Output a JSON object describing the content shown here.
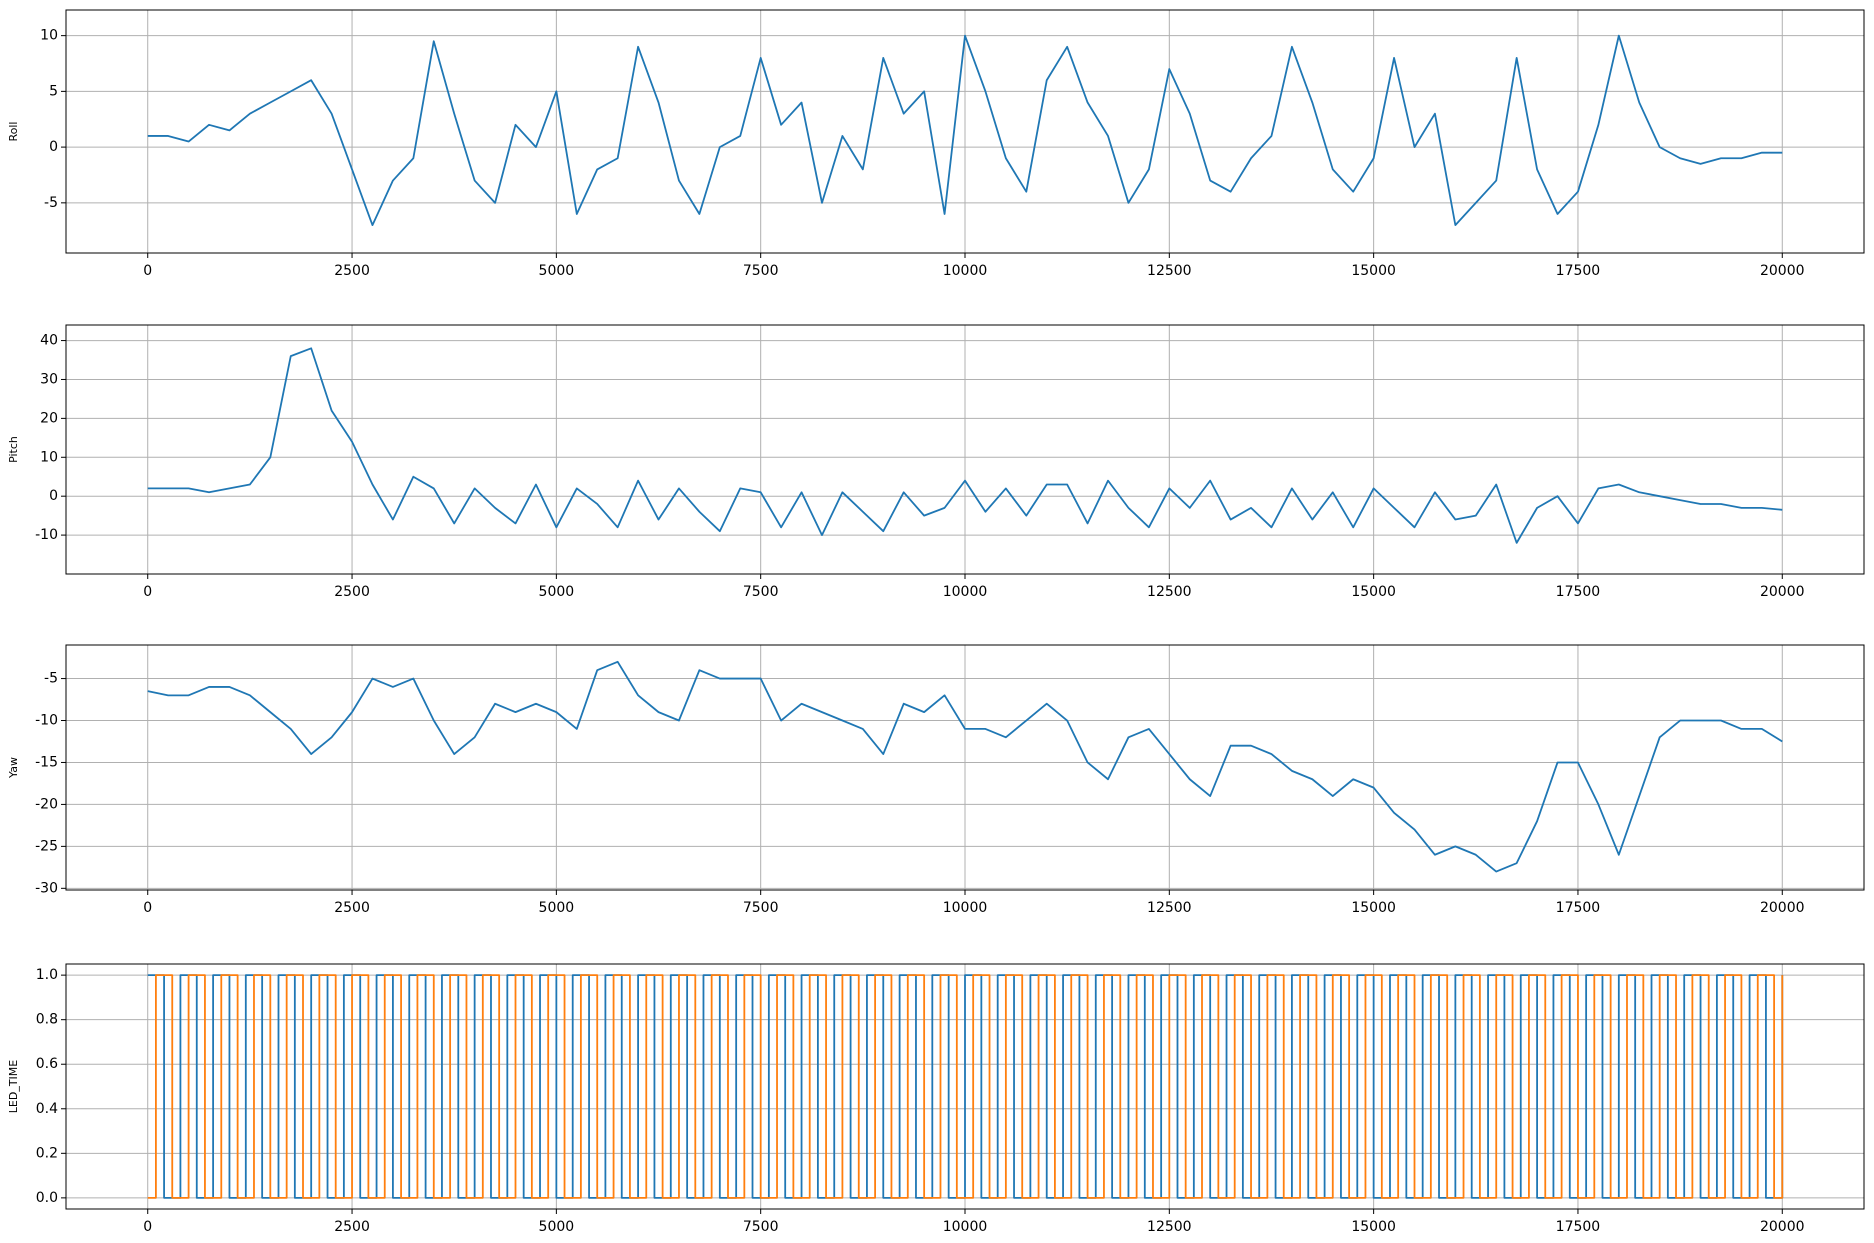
{
  "chart_data": [
    {
      "type": "line",
      "ylabel": "Roll",
      "xlim": [
        -1000,
        21000
      ],
      "xticks": [
        0,
        2500,
        5000,
        7500,
        10000,
        12500,
        15000,
        17500,
        20000
      ],
      "ylim": [
        -9.5,
        12.3
      ],
      "yticks": [
        -5,
        0,
        5,
        10
      ],
      "grid": true,
      "x": [
        0,
        250,
        500,
        750,
        1000,
        1250,
        1500,
        1750,
        2000,
        2250,
        2500,
        2750,
        3000,
        3250,
        3500,
        3750,
        4000,
        4250,
        4500,
        4750,
        5000,
        5250,
        5500,
        5750,
        6000,
        6250,
        6500,
        6750,
        7000,
        7250,
        7500,
        7750,
        8000,
        8250,
        8500,
        8750,
        9000,
        9250,
        9500,
        9750,
        10000,
        10250,
        10500,
        10750,
        11000,
        11250,
        11500,
        11750,
        12000,
        12250,
        12500,
        12750,
        13000,
        13250,
        13500,
        13750,
        14000,
        14250,
        14500,
        14750,
        15000,
        15250,
        15500,
        15750,
        16000,
        16250,
        16500,
        16750,
        17000,
        17250,
        17500,
        17750,
        18000,
        18250,
        18500,
        18750,
        19000,
        19250,
        19500,
        19750,
        20000
      ],
      "series": [
        {
          "color": "#1f77b4",
          "values": [
            1,
            1,
            0.5,
            2,
            1.5,
            3,
            4,
            5,
            6,
            3,
            -2,
            -7,
            -3,
            -1,
            9.5,
            3,
            -3,
            -5,
            2,
            0,
            5,
            -6,
            -2,
            -1,
            9,
            4,
            -3,
            -6,
            0,
            1,
            8,
            2,
            4,
            -5,
            1,
            -2,
            8,
            3,
            5,
            -6,
            10,
            5,
            -1,
            -4,
            6,
            9,
            4,
            1,
            -5,
            -2,
            7,
            3,
            -3,
            -4,
            -1,
            1,
            9,
            4,
            -2,
            -4,
            -1,
            8,
            0,
            3,
            -7,
            -5,
            -3,
            8,
            -2,
            -6,
            -4,
            2,
            10,
            4,
            0,
            -1,
            -1.5,
            -1,
            -1,
            -0.5,
            -0.5
          ]
        }
      ]
    },
    {
      "type": "line",
      "ylabel": "Pitch",
      "xlim": [
        -1000,
        21000
      ],
      "xticks": [
        0,
        2500,
        5000,
        7500,
        10000,
        12500,
        15000,
        17500,
        20000
      ],
      "ylim": [
        -20,
        44
      ],
      "yticks": [
        -10,
        0,
        10,
        20,
        30,
        40
      ],
      "grid": true,
      "x": [
        0,
        250,
        500,
        750,
        1000,
        1250,
        1500,
        1750,
        2000,
        2250,
        2500,
        2750,
        3000,
        3250,
        3500,
        3750,
        4000,
        4250,
        4500,
        4750,
        5000,
        5250,
        5500,
        5750,
        6000,
        6250,
        6500,
        6750,
        7000,
        7250,
        7500,
        7750,
        8000,
        8250,
        8500,
        8750,
        9000,
        9250,
        9500,
        9750,
        10000,
        10250,
        10500,
        10750,
        11000,
        11250,
        11500,
        11750,
        12000,
        12250,
        12500,
        12750,
        13000,
        13250,
        13500,
        13750,
        14000,
        14250,
        14500,
        14750,
        15000,
        15250,
        15500,
        15750,
        16000,
        16250,
        16500,
        16750,
        17000,
        17250,
        17500,
        17750,
        18000,
        18250,
        18500,
        18750,
        19000,
        19250,
        19500,
        19750,
        20000
      ],
      "series": [
        {
          "color": "#1f77b4",
          "values": [
            2,
            2,
            2,
            1,
            2,
            3,
            10,
            36,
            38,
            22,
            14,
            3,
            -6,
            5,
            2,
            -7,
            2,
            -3,
            -7,
            3,
            -8,
            2,
            -2,
            -8,
            4,
            -6,
            2,
            -4,
            -9,
            2,
            1,
            -8,
            1,
            -10,
            1,
            -4,
            -9,
            1,
            -5,
            -3,
            4,
            -4,
            2,
            -5,
            3,
            3,
            -7,
            4,
            -3,
            -8,
            2,
            -3,
            4,
            -6,
            -3,
            -8,
            2,
            -6,
            1,
            -8,
            2,
            -3,
            -8,
            1,
            -6,
            -5,
            3,
            -12,
            -3,
            0,
            -7,
            2,
            3,
            1,
            0,
            -1,
            -2,
            -2,
            -3,
            -3,
            -3.5
          ]
        }
      ]
    },
    {
      "type": "line",
      "ylabel": "Yaw",
      "xlim": [
        -1000,
        21000
      ],
      "xticks": [
        0,
        2500,
        5000,
        7500,
        10000,
        12500,
        15000,
        17500,
        20000
      ],
      "ylim": [
        -30.2,
        -1
      ],
      "yticks": [
        -30,
        -25,
        -20,
        -15,
        -10,
        -5
      ],
      "grid": true,
      "x": [
        0,
        250,
        500,
        750,
        1000,
        1250,
        1500,
        1750,
        2000,
        2250,
        2500,
        2750,
        3000,
        3250,
        3500,
        3750,
        4000,
        4250,
        4500,
        4750,
        5000,
        5250,
        5500,
        5750,
        6000,
        6250,
        6500,
        6750,
        7000,
        7250,
        7500,
        7750,
        8000,
        8250,
        8500,
        8750,
        9000,
        9250,
        9500,
        9750,
        10000,
        10250,
        10500,
        10750,
        11000,
        11250,
        11500,
        11750,
        12000,
        12250,
        12500,
        12750,
        13000,
        13250,
        13500,
        13750,
        14000,
        14250,
        14500,
        14750,
        15000,
        15250,
        15500,
        15750,
        16000,
        16250,
        16500,
        16750,
        17000,
        17250,
        17500,
        17750,
        18000,
        18250,
        18500,
        18750,
        19000,
        19250,
        19500,
        19750,
        20000
      ],
      "series": [
        {
          "color": "#1f77b4",
          "values": [
            -6.5,
            -7,
            -7,
            -6,
            -6,
            -7,
            -9,
            -11,
            -14,
            -12,
            -9,
            -5,
            -6,
            -5,
            -10,
            -14,
            -12,
            -8,
            -9,
            -8,
            -9,
            -11,
            -4,
            -3,
            -7,
            -9,
            -10,
            -4,
            -5,
            -5,
            -5,
            -10,
            -8,
            -9,
            -10,
            -11,
            -14,
            -8,
            -9,
            -7,
            -11,
            -11,
            -12,
            -10,
            -8,
            -10,
            -15,
            -17,
            -12,
            -11,
            -14,
            -17,
            -19,
            -13,
            -13,
            -14,
            -16,
            -17,
            -19,
            -17,
            -18,
            -21,
            -23,
            -26,
            -25,
            -26,
            -28,
            -27,
            -22,
            -15,
            -15,
            -20,
            -26,
            -19,
            -12,
            -10,
            -10,
            -10,
            -11,
            -11,
            -12.5
          ]
        }
      ]
    },
    {
      "type": "step",
      "ylabel": "LED_TIME",
      "xlim": [
        -1000,
        21000
      ],
      "xticks": [
        0,
        2500,
        5000,
        7500,
        10000,
        12500,
        15000,
        17500,
        20000
      ],
      "ylim": [
        -0.05,
        1.05
      ],
      "yticks": [
        {
          "value": 0,
          "label": "0.0"
        },
        {
          "value": 0.2,
          "label": "0.2"
        },
        {
          "value": 0.4,
          "label": "0.4"
        },
        {
          "value": 0.6,
          "label": "0.6"
        },
        {
          "value": 0.8,
          "label": "0.8"
        },
        {
          "value": 1,
          "label": "1.0"
        }
      ],
      "grid": true,
      "series": [
        {
          "color": "#1f77b4",
          "x": [
            0,
            200,
            400,
            600,
            800,
            1000,
            1200,
            1400,
            1600,
            1800,
            2000,
            2200,
            2400,
            2600,
            2800,
            3000,
            3200,
            3400,
            3600,
            3800,
            4000,
            4200,
            4400,
            4600,
            4800,
            5000,
            5200,
            5400,
            5600,
            5800,
            6000,
            6200,
            6400,
            6600,
            6800,
            7000,
            7200,
            7400,
            7600,
            7800,
            8000,
            8200,
            8400,
            8600,
            8800,
            9000,
            9200,
            9400,
            9600,
            9800,
            10000,
            10200,
            10400,
            10600,
            10800,
            11000,
            11200,
            11400,
            11600,
            11800,
            12000,
            12200,
            12400,
            12600,
            12800,
            13000,
            13200,
            13400,
            13600,
            13800,
            14000,
            14200,
            14400,
            14600,
            14800,
            15000,
            15200,
            15400,
            15600,
            15800,
            16000,
            16200,
            16400,
            16600,
            16800,
            17000,
            17200,
            17400,
            17600,
            17800,
            18000,
            18200,
            18400,
            18600,
            18800,
            19000,
            19200,
            19400,
            19600,
            19800,
            20000
          ],
          "values": [
            1,
            0,
            1,
            0,
            1,
            0,
            1,
            0,
            1,
            0,
            1,
            0,
            1,
            0,
            1,
            0,
            1,
            0,
            1,
            0,
            1,
            0,
            1,
            0,
            1,
            0,
            1,
            0,
            1,
            0,
            1,
            0,
            1,
            0,
            1,
            0,
            1,
            0,
            1,
            0,
            1,
            0,
            1,
            0,
            1,
            0,
            1,
            0,
            1,
            0,
            1,
            0,
            1,
            0,
            1,
            0,
            1,
            0,
            1,
            0,
            1,
            0,
            1,
            0,
            1,
            0,
            1,
            0,
            1,
            0,
            1,
            0,
            1,
            0,
            1,
            0,
            1,
            0,
            1,
            0,
            1,
            0,
            1,
            0,
            1,
            0,
            1,
            0,
            1,
            0,
            1,
            0,
            1,
            0,
            1,
            0,
            1,
            0,
            1,
            0,
            1
          ]
        },
        {
          "color": "#ff7f0e",
          "x": [
            0,
            100,
            300,
            500,
            700,
            900,
            1100,
            1300,
            1500,
            1700,
            1900,
            2100,
            2300,
            2500,
            2700,
            2900,
            3100,
            3300,
            3500,
            3700,
            3900,
            4100,
            4300,
            4500,
            4700,
            4900,
            5100,
            5300,
            5500,
            5700,
            5900,
            6100,
            6300,
            6500,
            6700,
            6900,
            7100,
            7300,
            7500,
            7700,
            7900,
            8100,
            8300,
            8500,
            8700,
            8900,
            9100,
            9300,
            9500,
            9700,
            9900,
            10100,
            10300,
            10500,
            10700,
            10900,
            11100,
            11300,
            11500,
            11700,
            11900,
            12100,
            12300,
            12500,
            12700,
            12900,
            13100,
            13300,
            13500,
            13700,
            13900,
            14100,
            14300,
            14500,
            14700,
            14900,
            15100,
            15300,
            15500,
            15700,
            15900,
            16100,
            16300,
            16500,
            16700,
            16900,
            17100,
            17300,
            17500,
            17700,
            17900,
            18100,
            18300,
            18500,
            18700,
            18900,
            19100,
            19300,
            19500,
            19700,
            19900,
            20000
          ],
          "values": [
            0,
            1,
            0,
            1,
            0,
            1,
            0,
            1,
            0,
            1,
            0,
            1,
            0,
            1,
            0,
            1,
            0,
            1,
            0,
            1,
            0,
            1,
            0,
            1,
            0,
            1,
            0,
            1,
            0,
            1,
            0,
            1,
            0,
            1,
            0,
            1,
            0,
            1,
            0,
            1,
            0,
            1,
            0,
            1,
            0,
            1,
            0,
            1,
            0,
            1,
            0,
            1,
            0,
            1,
            0,
            1,
            0,
            1,
            0,
            1,
            0,
            1,
            0,
            1,
            0,
            1,
            0,
            1,
            0,
            1,
            0,
            1,
            0,
            1,
            0,
            1,
            0,
            1,
            0,
            1,
            0,
            1,
            0,
            1,
            0,
            1,
            0,
            1,
            0,
            1,
            0,
            1,
            0,
            1,
            0,
            1,
            0,
            1,
            0,
            1,
            0,
            1
          ]
        }
      ]
    }
  ]
}
